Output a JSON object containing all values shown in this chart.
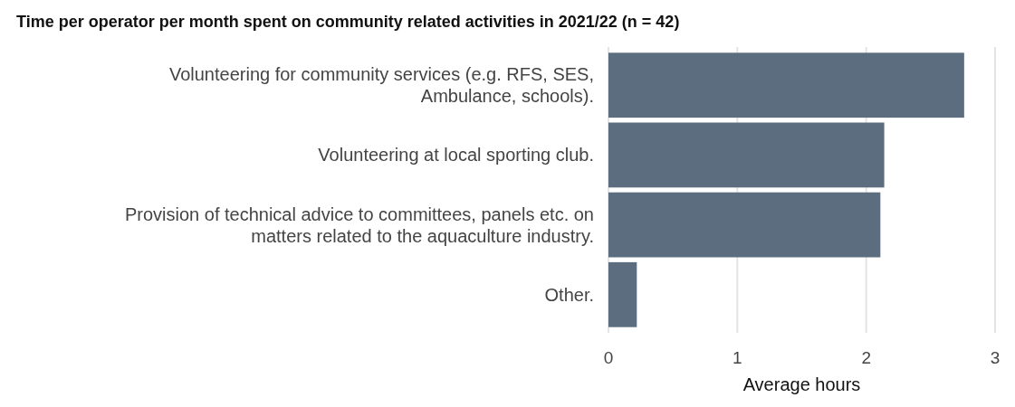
{
  "chart_data": {
    "type": "bar",
    "orientation": "horizontal",
    "title": "Time per operator per month spent on community related activities in 2021/22 (n = 42)",
    "xlabel": "Average hours",
    "categories": [
      "Volunteering for community services (e.g. RFS, SES, Ambulance, schools).",
      "Volunteering at local sporting club.",
      "Provision of technical advice to committees, panels etc. on matters related to the aquaculture industry.",
      "Other."
    ],
    "values": [
      2.76,
      2.14,
      2.11,
      0.22
    ],
    "color": "#5b6d7e",
    "xlim": [
      0,
      3
    ],
    "xticks": [
      0,
      1,
      2,
      3
    ],
    "grid": "x"
  }
}
